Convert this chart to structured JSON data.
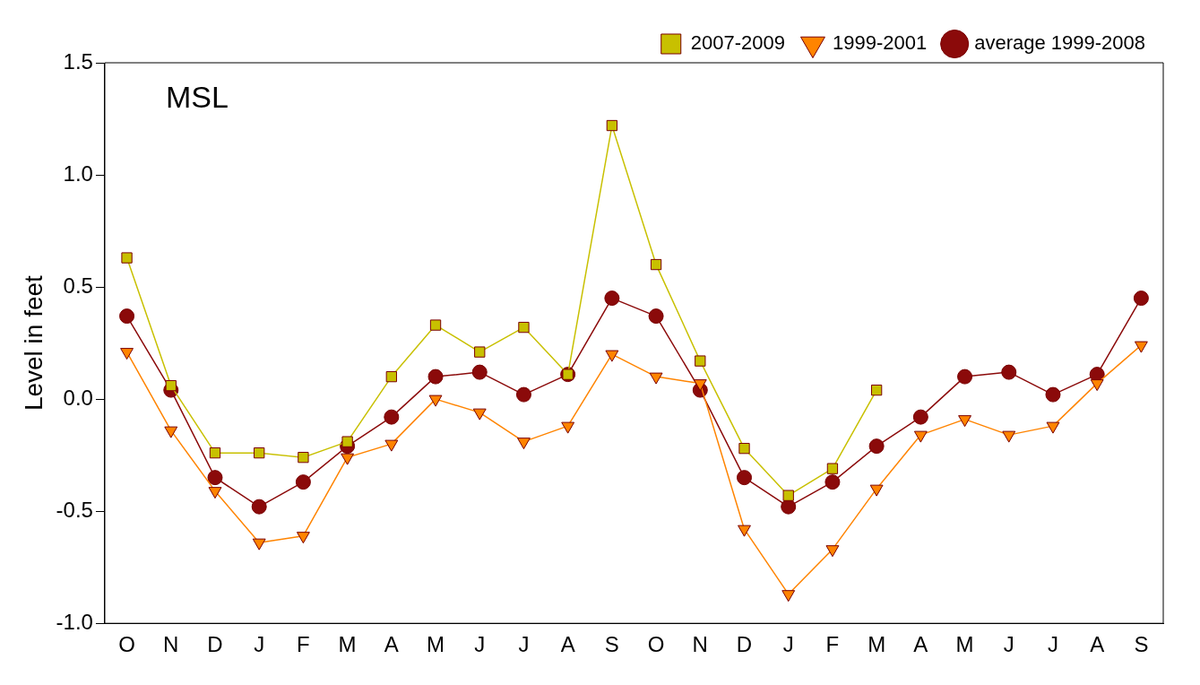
{
  "chart_data": {
    "type": "line",
    "ylabel": "Level in feet",
    "annotations": [
      "MSL"
    ],
    "categories": [
      "O",
      "N",
      "D",
      "J",
      "F",
      "M",
      "A",
      "M",
      "J",
      "J",
      "A",
      "S",
      "O",
      "N",
      "D",
      "J",
      "F",
      "M",
      "A",
      "M",
      "J",
      "J",
      "A",
      "S"
    ],
    "series": [
      {
        "name": "average 1999-2008",
        "color": "#8b0a0a",
        "marker": "circle",
        "values": [
          0.37,
          0.04,
          -0.35,
          -0.48,
          -0.37,
          -0.21,
          -0.08,
          0.1,
          0.12,
          0.02,
          0.11,
          0.45,
          0.37,
          0.04,
          -0.35,
          -0.48,
          -0.37,
          -0.21,
          -0.08,
          0.1,
          0.12,
          0.02,
          0.11,
          0.45
        ]
      },
      {
        "name": "1999-2001",
        "color": "#ff8400",
        "marker": "triangle",
        "values": [
          0.21,
          -0.14,
          -0.41,
          -0.64,
          -0.61,
          -0.26,
          -0.2,
          0.0,
          -0.06,
          -0.19,
          -0.12,
          0.2,
          0.1,
          0.07,
          -0.58,
          -0.87,
          -0.67,
          -0.4,
          -0.16,
          -0.09,
          -0.16,
          -0.12,
          0.07,
          0.24
        ]
      },
      {
        "name": "2007-2009",
        "color": "#c8c000",
        "marker": "square",
        "values": [
          0.63,
          0.06,
          -0.24,
          -0.24,
          -0.26,
          -0.19,
          0.1,
          0.33,
          0.21,
          0.32,
          0.11,
          1.22,
          0.6,
          0.17,
          -0.22,
          -0.43,
          -0.31,
          0.04,
          null,
          null,
          null,
          null,
          null,
          null
        ]
      }
    ],
    "ylim": [
      -1.0,
      1.5
    ],
    "yticks": [
      {
        "value": -1,
        "label": "-1.0"
      },
      {
        "value": -0.5,
        "label": "-0.5"
      },
      {
        "value": 0,
        "label": "0.0"
      },
      {
        "value": 0.5,
        "label": "0.5"
      },
      {
        "value": 1,
        "label": "1.0"
      },
      {
        "value": 1.5,
        "label": "1.5"
      }
    ],
    "grid": false,
    "legend": "top right"
  }
}
